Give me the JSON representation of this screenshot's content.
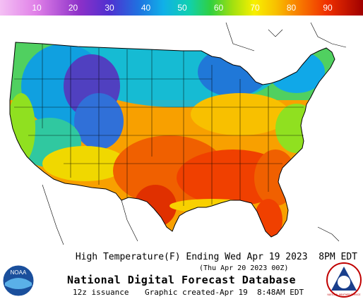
{
  "colorbar": {
    "ticks": [
      "10",
      "20",
      "30",
      "40",
      "50",
      "60",
      "70",
      "80",
      "90"
    ],
    "colors": [
      "#f0b0f0",
      "#d070e0",
      "#8030c8",
      "#3050d8",
      "#10a0f0",
      "#10d0c0",
      "#40d040",
      "#a0e010",
      "#f0f000",
      "#f8c000",
      "#f88000",
      "#f04000",
      "#c80000"
    ]
  },
  "map": {
    "palette": {
      "very_cold": "#5030b0",
      "cold": "#3070d8",
      "cool": "#10a8e8",
      "mild": "#20c8a0",
      "warm_mild": "#50d040",
      "warm": "#a8e010",
      "hot": "#f0d000",
      "hotter": "#f89000",
      "very_hot": "#f05000",
      "hottest": "#e03000",
      "ocean": "#ffffff"
    }
  },
  "caption": {
    "title": "High Temperature(F) Ending Wed Apr 19 2023  8PM EDT",
    "subtitle": "(Thu Apr 20 2023 00Z)",
    "database": "National Digital Forecast Database",
    "issuance": "12z issuance",
    "created": "Graphic created-Apr 19  8:48AM EDT"
  },
  "logos": {
    "noaa": "NOAA",
    "nws": "NATIONAL WEATHER SERVICE"
  }
}
